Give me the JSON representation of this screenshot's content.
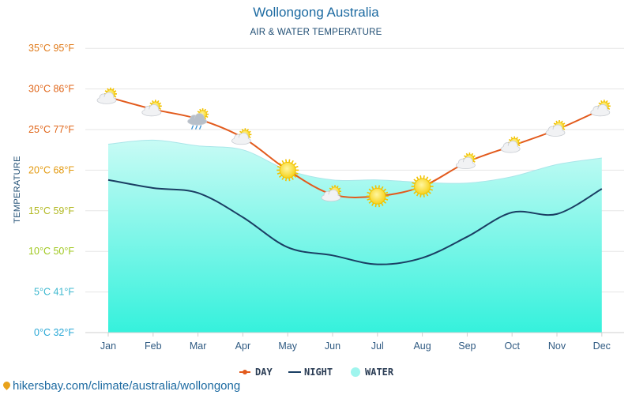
{
  "header": {
    "title": "Wollongong Australia",
    "subtitle": "AIR & WATER TEMPERATURE"
  },
  "source": {
    "url_text": "hikersbay.com/climate/australia/wollongong",
    "pin_icon": "location-pin-icon"
  },
  "colors": {
    "day": "#e25a1c",
    "night": "#1a3e63",
    "water_top": "#c8fbf5",
    "water_bottom": "#35f1dc",
    "water_edge": "#a9e6e9",
    "grid": "#e6e6e6",
    "tick_30": "#e0661a",
    "tick_35": "#e07a1a",
    "tick_25": "#e0661a",
    "tick_20": "#e39a10",
    "tick_15": "#b1b820",
    "tick_10": "#a0c81f",
    "tick_5": "#3db8cf",
    "tick_0": "#2aa8d6"
  },
  "chart_data": {
    "type": "line",
    "title": "Wollongong Australia",
    "subtitle": "AIR & WATER TEMPERATURE",
    "ylabel": "TEMPERATURE",
    "xlabel": "",
    "ylim": [
      0,
      35
    ],
    "grid": true,
    "categories": [
      "Jan",
      "Feb",
      "Mar",
      "Apr",
      "May",
      "Jun",
      "Jul",
      "Aug",
      "Sep",
      "Oct",
      "Nov",
      "Dec"
    ],
    "yticks": [
      {
        "value": 0,
        "label": "0°C 32°F"
      },
      {
        "value": 5,
        "label": "5°C 41°F"
      },
      {
        "value": 10,
        "label": "10°C 50°F"
      },
      {
        "value": 15,
        "label": "15°C 59°F"
      },
      {
        "value": 20,
        "label": "20°C 68°F"
      },
      {
        "value": 25,
        "label": "25°C 77°F"
      },
      {
        "value": 30,
        "label": "30°C 86°F"
      },
      {
        "value": 35,
        "label": "35°C 95°F"
      }
    ],
    "series": [
      {
        "name": "DAY",
        "style": "line-markers",
        "values": [
          29,
          27.5,
          26.3,
          24,
          20,
          17,
          16.8,
          18,
          21,
          23,
          25,
          27.5
        ]
      },
      {
        "name": "NIGHT",
        "style": "line",
        "values": [
          18.8,
          17.8,
          17.2,
          14.2,
          10.5,
          9.5,
          8.4,
          9.2,
          11.8,
          14.8,
          14.6,
          17.7
        ]
      },
      {
        "name": "WATER",
        "style": "area",
        "values": [
          23.2,
          23.7,
          23,
          22.5,
          20,
          18.8,
          18.8,
          18.5,
          18.4,
          19.2,
          20.7,
          21.5
        ]
      }
    ],
    "weather_icons": [
      "sun-cloud",
      "sun-cloud",
      "rain-cloud",
      "sun-cloud",
      "sun",
      "sun-cloud",
      "sun",
      "sun",
      "sun-cloud",
      "sun-cloud",
      "sun-cloud",
      "sun-cloud"
    ],
    "legend": {
      "placement": "bottom-center",
      "items": [
        "DAY",
        "NIGHT",
        "WATER"
      ]
    }
  }
}
